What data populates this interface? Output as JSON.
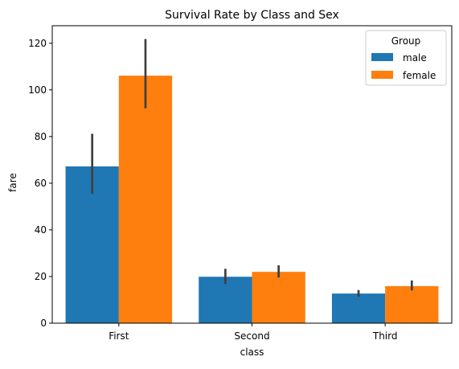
{
  "chart_data": {
    "type": "bar",
    "title": "Survival Rate by Class and Sex",
    "xlabel": "class",
    "ylabel": "fare",
    "categories": [
      "First",
      "Second",
      "Third"
    ],
    "ylim": [
      0,
      127.5
    ],
    "yticks": [
      0,
      20,
      40,
      60,
      80,
      100,
      120
    ],
    "grid": false,
    "legend": {
      "title": "Group",
      "placement": "top-right"
    },
    "series": [
      {
        "name": "male",
        "color": "#1f77b4",
        "values": [
          67.2,
          19.9,
          12.7
        ],
        "error_low": [
          55.5,
          16.8,
          11.3
        ],
        "error_high": [
          81.2,
          23.3,
          14.2
        ]
      },
      {
        "name": "female",
        "color": "#ff7f0e",
        "values": [
          106.1,
          22.0,
          15.9
        ],
        "error_low": [
          92.1,
          19.6,
          14.0
        ],
        "error_high": [
          121.8,
          24.8,
          18.3
        ]
      }
    ]
  }
}
